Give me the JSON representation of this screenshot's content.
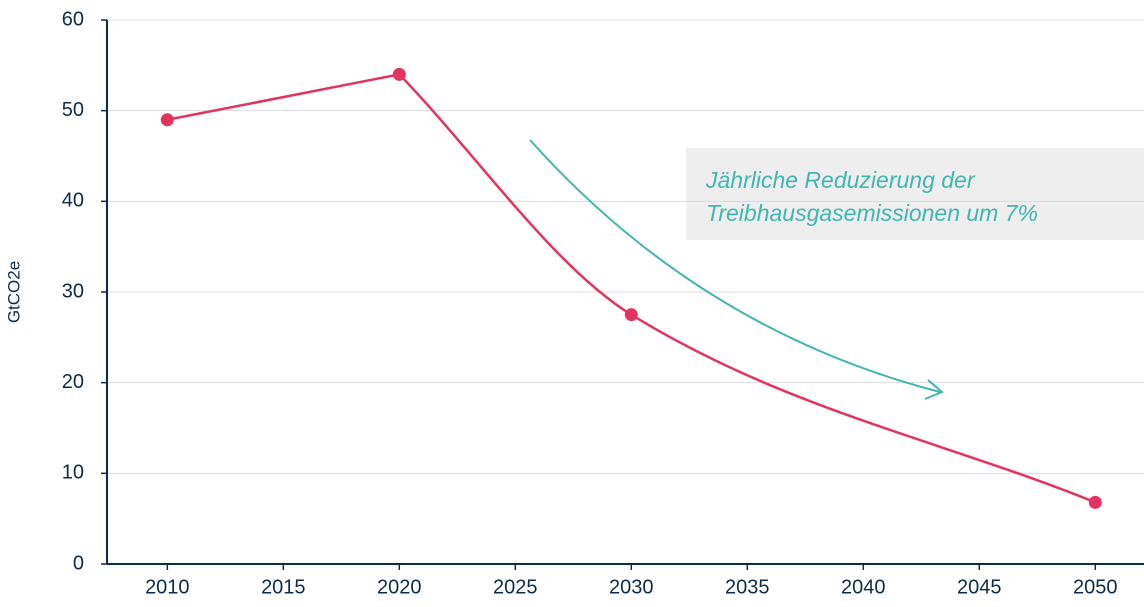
{
  "chart_data": {
    "type": "line",
    "ylabel": "GtCO2e",
    "x": [
      2010,
      2020,
      2030,
      2050
    ],
    "series": [
      {
        "color": "#e3335f",
        "values": [
          49,
          54,
          27.5,
          6.8
        ]
      }
    ],
    "xlim": [
      2007.4,
      2052.1
    ],
    "xticks": [
      2010,
      2015,
      2020,
      2025,
      2030,
      2035,
      2040,
      2045,
      2050
    ],
    "ylim": [
      0,
      60
    ],
    "yticks": [
      0,
      10,
      20,
      30,
      40,
      50,
      60
    ],
    "grid": true,
    "annotation": {
      "lines": [
        "Jährliche Reduzierung der",
        "Treibhausgasemissionen um 7%"
      ],
      "color": "#3fb6ae"
    }
  }
}
